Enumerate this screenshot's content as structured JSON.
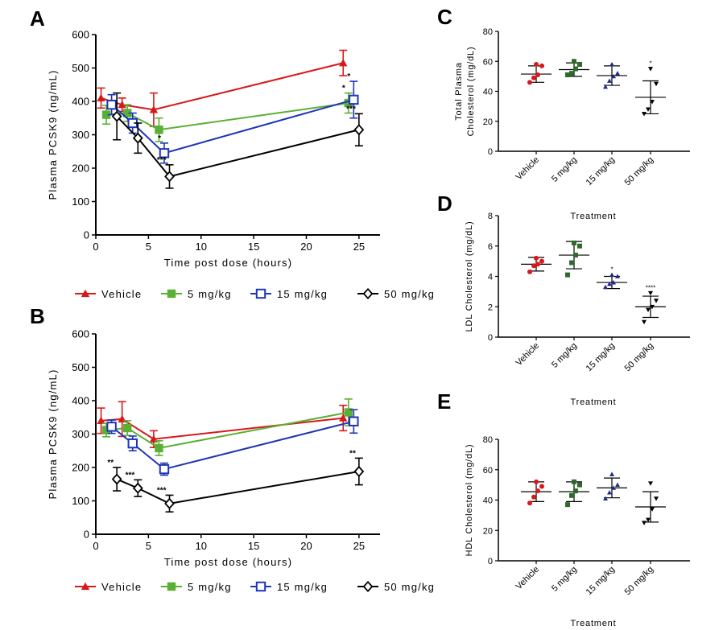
{
  "chart_data": [
    {
      "id": "A",
      "type": "line",
      "panel_label": "A",
      "xlabel": "Time post dose (hours)",
      "ylabel": "Plasma PCSK9 (ng/mL)",
      "xlim": [
        0,
        27
      ],
      "ylim": [
        0,
        600
      ],
      "xticks": [
        0,
        5,
        10,
        15,
        20,
        25
      ],
      "yticks": [
        0,
        100,
        200,
        300,
        400,
        500,
        600
      ],
      "grid": false,
      "legend_position": "bottom",
      "series": [
        {
          "name": "Vehicle",
          "color": "#d7191c",
          "marker": "triangle",
          "points": [
            {
              "x": 0.5,
              "y": 410,
              "err": 30
            },
            {
              "x": 2.5,
              "y": 390,
              "err": 20
            },
            {
              "x": 5.5,
              "y": 375,
              "err": 50
            },
            {
              "x": 23.5,
              "y": 515,
              "err": 38
            }
          ],
          "sig": [
            "",
            "",
            "",
            ""
          ]
        },
        {
          "name": "5 mg/kg",
          "color": "#5ab033",
          "marker": "square",
          "points": [
            {
              "x": 1.0,
              "y": 360,
              "err": 28
            },
            {
              "x": 3.0,
              "y": 365,
              "err": 25
            },
            {
              "x": 6.0,
              "y": 315,
              "err": 35
            },
            {
              "x": 24.0,
              "y": 395,
              "err": 30
            }
          ],
          "sig": [
            "",
            "",
            "",
            "*"
          ]
        },
        {
          "name": "15 mg/kg",
          "color": "#1f35b8",
          "marker": "square-open",
          "points": [
            {
              "x": 1.5,
              "y": 390,
              "err": 30
            },
            {
              "x": 3.5,
              "y": 335,
              "err": 30
            },
            {
              "x": 6.5,
              "y": 245,
              "err": 30
            },
            {
              "x": 24.5,
              "y": 405,
              "err": 55
            }
          ],
          "sig": [
            "",
            "",
            "*",
            "*"
          ]
        },
        {
          "name": "50 mg/kg",
          "color": "#000000",
          "marker": "diamond-open",
          "points": [
            {
              "x": 2.0,
              "y": 355,
              "err": 70
            },
            {
              "x": 4.0,
              "y": 290,
              "err": 45
            },
            {
              "x": 7.0,
              "y": 175,
              "err": 35
            },
            {
              "x": 25.0,
              "y": 315,
              "err": 48
            }
          ],
          "sig": [
            "",
            "",
            "***",
            "***"
          ]
        }
      ]
    },
    {
      "id": "B",
      "type": "line",
      "panel_label": "B",
      "xlabel": "Time post dose (hours)",
      "ylabel": "Plasma PCSK9 (ng/mL)",
      "xlim": [
        0,
        27
      ],
      "ylim": [
        0,
        600
      ],
      "xticks": [
        0,
        5,
        10,
        15,
        20,
        25
      ],
      "yticks": [
        0,
        100,
        200,
        300,
        400,
        500,
        600
      ],
      "grid": false,
      "legend_position": "bottom",
      "series": [
        {
          "name": "Vehicle",
          "color": "#d7191c",
          "marker": "triangle",
          "points": [
            {
              "x": 0.5,
              "y": 340,
              "err": 38
            },
            {
              "x": 2.5,
              "y": 345,
              "err": 52
            },
            {
              "x": 5.5,
              "y": 285,
              "err": 25
            },
            {
              "x": 23.5,
              "y": 348,
              "err": 38
            }
          ],
          "sig": [
            "",
            "",
            "",
            ""
          ]
        },
        {
          "name": "5 mg/kg",
          "color": "#5ab033",
          "marker": "square",
          "points": [
            {
              "x": 1.0,
              "y": 312,
              "err": 20
            },
            {
              "x": 3.0,
              "y": 318,
              "err": 22
            },
            {
              "x": 6.0,
              "y": 258,
              "err": 22
            },
            {
              "x": 24.0,
              "y": 365,
              "err": 40
            }
          ],
          "sig": [
            "",
            "",
            "",
            ""
          ]
        },
        {
          "name": "15 mg/kg",
          "color": "#1f35b8",
          "marker": "square-open",
          "points": [
            {
              "x": 1.5,
              "y": 322,
              "err": 20
            },
            {
              "x": 3.5,
              "y": 272,
              "err": 22
            },
            {
              "x": 6.5,
              "y": 195,
              "err": 18
            },
            {
              "x": 24.5,
              "y": 338,
              "err": 35
            }
          ],
          "sig": [
            "",
            "",
            "",
            ""
          ]
        },
        {
          "name": "50 mg/kg",
          "color": "#000000",
          "marker": "diamond-open",
          "points": [
            {
              "x": 2.0,
              "y": 165,
              "err": 35
            },
            {
              "x": 4.0,
              "y": 138,
              "err": 25
            },
            {
              "x": 7.0,
              "y": 92,
              "err": 25
            },
            {
              "x": 25.0,
              "y": 188,
              "err": 40
            }
          ],
          "sig": [
            "**",
            "***",
            "***",
            "**"
          ]
        }
      ]
    },
    {
      "id": "C",
      "type": "scatter",
      "panel_label": "C",
      "xlabel": "Treatment",
      "ylabel_lines": [
        "Total Plasma",
        "Cholesterol (mg/dL)"
      ],
      "ylim": [
        0,
        80
      ],
      "yticks": [
        0,
        20,
        40,
        60,
        80
      ],
      "categories": [
        "Vehicle",
        "5 mg/kg",
        "15 mg/kg",
        "50 mg/kg"
      ],
      "colors": [
        "#d7191c",
        "#2e6b2b",
        "#1f2a8a",
        "#000000"
      ],
      "markers": [
        "circle",
        "square",
        "triangle",
        "triangle-down"
      ],
      "groups": [
        {
          "mean": 51.5,
          "sd": 5.5,
          "points": [
            46,
            49,
            51,
            57,
            58
          ],
          "sig": ""
        },
        {
          "mean": 54.5,
          "sd": 4.5,
          "points": [
            51,
            52,
            55,
            58,
            60
          ],
          "sig": ""
        },
        {
          "mean": 50.5,
          "sd": 6.5,
          "points": [
            43,
            47,
            50,
            52,
            58
          ],
          "sig": ""
        },
        {
          "mean": 36.0,
          "sd": 11.0,
          "points": [
            25,
            28,
            33,
            45,
            55
          ],
          "sig": "*"
        }
      ]
    },
    {
      "id": "D",
      "type": "scatter",
      "panel_label": "D",
      "xlabel": "Treatment",
      "ylabel": "LDL Cholesterol (mg/dL)",
      "ylim": [
        0,
        8
      ],
      "yticks": [
        0,
        2,
        4,
        6,
        8
      ],
      "categories": [
        "Vehicle",
        "5 mg/kg",
        "15 mg/kg",
        "50 mg/kg"
      ],
      "colors": [
        "#d7191c",
        "#2e6b2b",
        "#1f2a8a",
        "#000000"
      ],
      "markers": [
        "circle",
        "square",
        "triangle",
        "triangle-down"
      ],
      "groups": [
        {
          "mean": 4.8,
          "sd": 0.45,
          "points": [
            4.3,
            4.7,
            4.8,
            5.0,
            5.2
          ],
          "sig": ""
        },
        {
          "mean": 5.4,
          "sd": 0.9,
          "points": [
            4.1,
            4.9,
            5.4,
            6.0,
            6.2
          ],
          "sig": ""
        },
        {
          "mean": 3.6,
          "sd": 0.4,
          "points": [
            3.3,
            3.5,
            3.6,
            4.0,
            4.1
          ],
          "sig": "*"
        },
        {
          "mean": 2.0,
          "sd": 0.7,
          "points": [
            1.0,
            1.8,
            2.0,
            2.4,
            2.9
          ],
          "sig": "****"
        }
      ]
    },
    {
      "id": "E",
      "type": "scatter",
      "panel_label": "E",
      "xlabel": "Treatment",
      "ylabel": "HDL Cholesterol (mg/dL)",
      "ylim": [
        0,
        80
      ],
      "yticks": [
        0,
        20,
        40,
        60,
        80
      ],
      "categories": [
        "Vehicle",
        "5 mg/kg",
        "15 mg/kg",
        "50 mg/kg"
      ],
      "colors": [
        "#d7191c",
        "#2e6b2b",
        "#1f2a8a",
        "#000000"
      ],
      "markers": [
        "circle",
        "square",
        "triangle",
        "triangle-down"
      ],
      "groups": [
        {
          "mean": 45.5,
          "sd": 6.5,
          "points": [
            38,
            42,
            46,
            49,
            52
          ],
          "sig": ""
        },
        {
          "mean": 45.5,
          "sd": 6.5,
          "points": [
            37,
            43,
            46,
            50,
            52
          ],
          "sig": ""
        },
        {
          "mean": 48.0,
          "sd": 6.5,
          "points": [
            41,
            45,
            48,
            50,
            57
          ],
          "sig": ""
        },
        {
          "mean": 35.5,
          "sd": 10.0,
          "points": [
            25,
            27,
            34,
            41,
            51
          ],
          "sig": ""
        }
      ]
    }
  ]
}
